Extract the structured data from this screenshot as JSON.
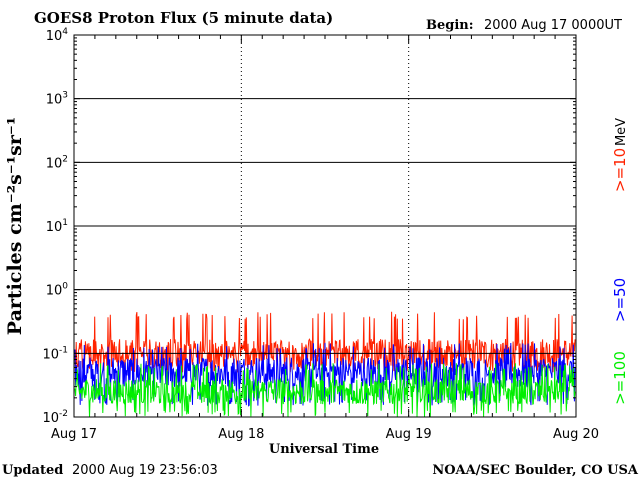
{
  "header": {
    "title": "GOES8 Proton Flux (5 minute data)",
    "begin_label": "Begin:",
    "begin_value": "2000 Aug 17 0000UT"
  },
  "footer": {
    "updated_label": "Updated",
    "updated_value": "2000 Aug 19 23:56:03",
    "source": "NOAA/SEC Boulder, CO USA"
  },
  "chart_data": {
    "type": "line",
    "title": "GOES8 Proton Flux (5 minute data)",
    "xlabel": "Universal Time",
    "ylabel": "Particles cm⁻²s⁻¹sr⁻¹",
    "y_scale": "log",
    "ylim": [
      0.01,
      10000
    ],
    "xlim": [
      "2000-08-17",
      "2000-08-20"
    ],
    "x_ticks": [
      "Aug 17",
      "Aug 18",
      "Aug 19",
      "Aug 20"
    ],
    "y_ticks": [
      {
        "base": "10",
        "exp": "-2"
      },
      {
        "base": "10",
        "exp": "-1"
      },
      {
        "base": "10",
        "exp": "0"
      },
      {
        "base": "10",
        "exp": "1"
      },
      {
        "base": "10",
        "exp": "2"
      },
      {
        "base": "10",
        "exp": "3"
      },
      {
        "base": "10",
        "exp": "4"
      }
    ],
    "grid": true,
    "units_label": "MeV",
    "series": [
      {
        "name": ">=10",
        "color": "#ff2200",
        "typical_value": 0.1,
        "range": [
          0.05,
          0.45
        ]
      },
      {
        "name": ">=50",
        "color": "#0000ff",
        "typical_value": 0.05,
        "range": [
          0.015,
          0.15
        ]
      },
      {
        "name": ">=100",
        "color": "#00ee00",
        "typical_value": 0.025,
        "range": [
          0.01,
          0.07
        ]
      }
    ]
  }
}
